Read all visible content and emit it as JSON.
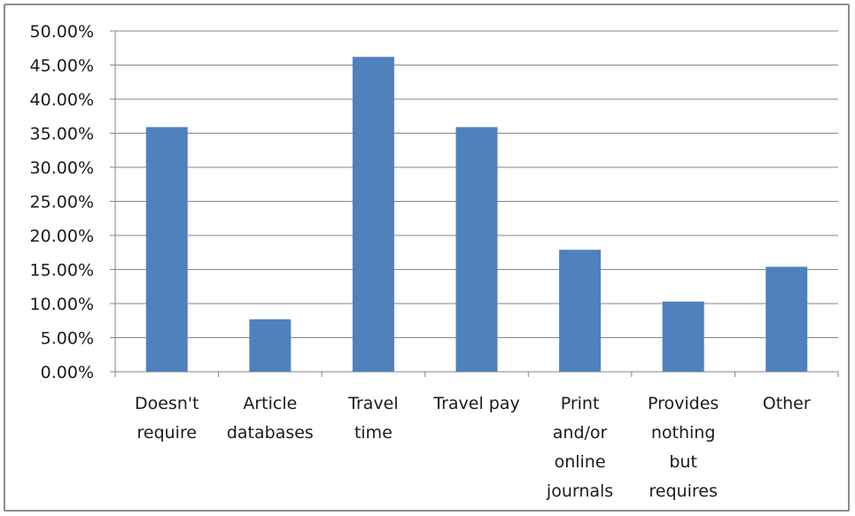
{
  "chart_data": {
    "type": "bar",
    "categories": [
      [
        "Doesn't",
        "require"
      ],
      [
        "Article",
        "databases"
      ],
      [
        "Travel",
        "time"
      ],
      [
        "Travel pay"
      ],
      [
        "Print",
        "and/or",
        "online",
        "journals"
      ],
      [
        "Provides",
        "nothing",
        "but",
        "requires"
      ],
      [
        "Other"
      ]
    ],
    "values": [
      35.9,
      7.7,
      46.2,
      35.9,
      17.9,
      10.3,
      15.4
    ],
    "ylim": [
      0,
      50
    ],
    "yticks": [
      "0.00%",
      "5.00%",
      "10.00%",
      "15.00%",
      "20.00%",
      "25.00%",
      "30.00%",
      "35.00%",
      "40.00%",
      "45.00%",
      "50.00%"
    ],
    "title": "",
    "xlabel": "",
    "ylabel": "",
    "grid": true,
    "legend": "none",
    "colors": {
      "bar": "#4f81bd",
      "grid": "#868686",
      "axis": "#868686"
    }
  }
}
